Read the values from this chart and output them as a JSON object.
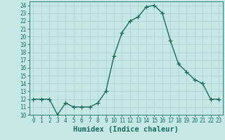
{
  "x": [
    0,
    1,
    2,
    3,
    4,
    5,
    6,
    7,
    8,
    9,
    10,
    11,
    12,
    13,
    14,
    15,
    16,
    17,
    18,
    19,
    20,
    21,
    22,
    23
  ],
  "y": [
    12,
    12,
    12,
    10,
    11.5,
    11,
    11,
    11,
    11.5,
    13,
    17.5,
    20.5,
    22,
    22.5,
    23.8,
    24,
    23,
    19.5,
    16.5,
    15.5,
    14.5,
    14,
    12,
    12
  ],
  "xlabel": "Humidex (Indice chaleur)",
  "ylabel": "",
  "ylim": [
    10,
    24.5
  ],
  "xlim": [
    -0.5,
    23.5
  ],
  "line_color": "#1a6b5e",
  "marker": "+",
  "marker_size": 4,
  "bg_color": "#c5e8e5",
  "grid_color": "#aacfcc",
  "yticks": [
    10,
    11,
    12,
    13,
    14,
    15,
    16,
    17,
    18,
    19,
    20,
    21,
    22,
    23,
    24
  ],
  "xticks": [
    0,
    1,
    2,
    3,
    4,
    5,
    6,
    7,
    8,
    9,
    10,
    11,
    12,
    13,
    14,
    15,
    16,
    17,
    18,
    19,
    20,
    21,
    22,
    23
  ],
  "tick_label_fontsize": 5.5,
  "xlabel_fontsize": 7.5,
  "line_width": 1.0,
  "marker_color": "#1a6b5e"
}
